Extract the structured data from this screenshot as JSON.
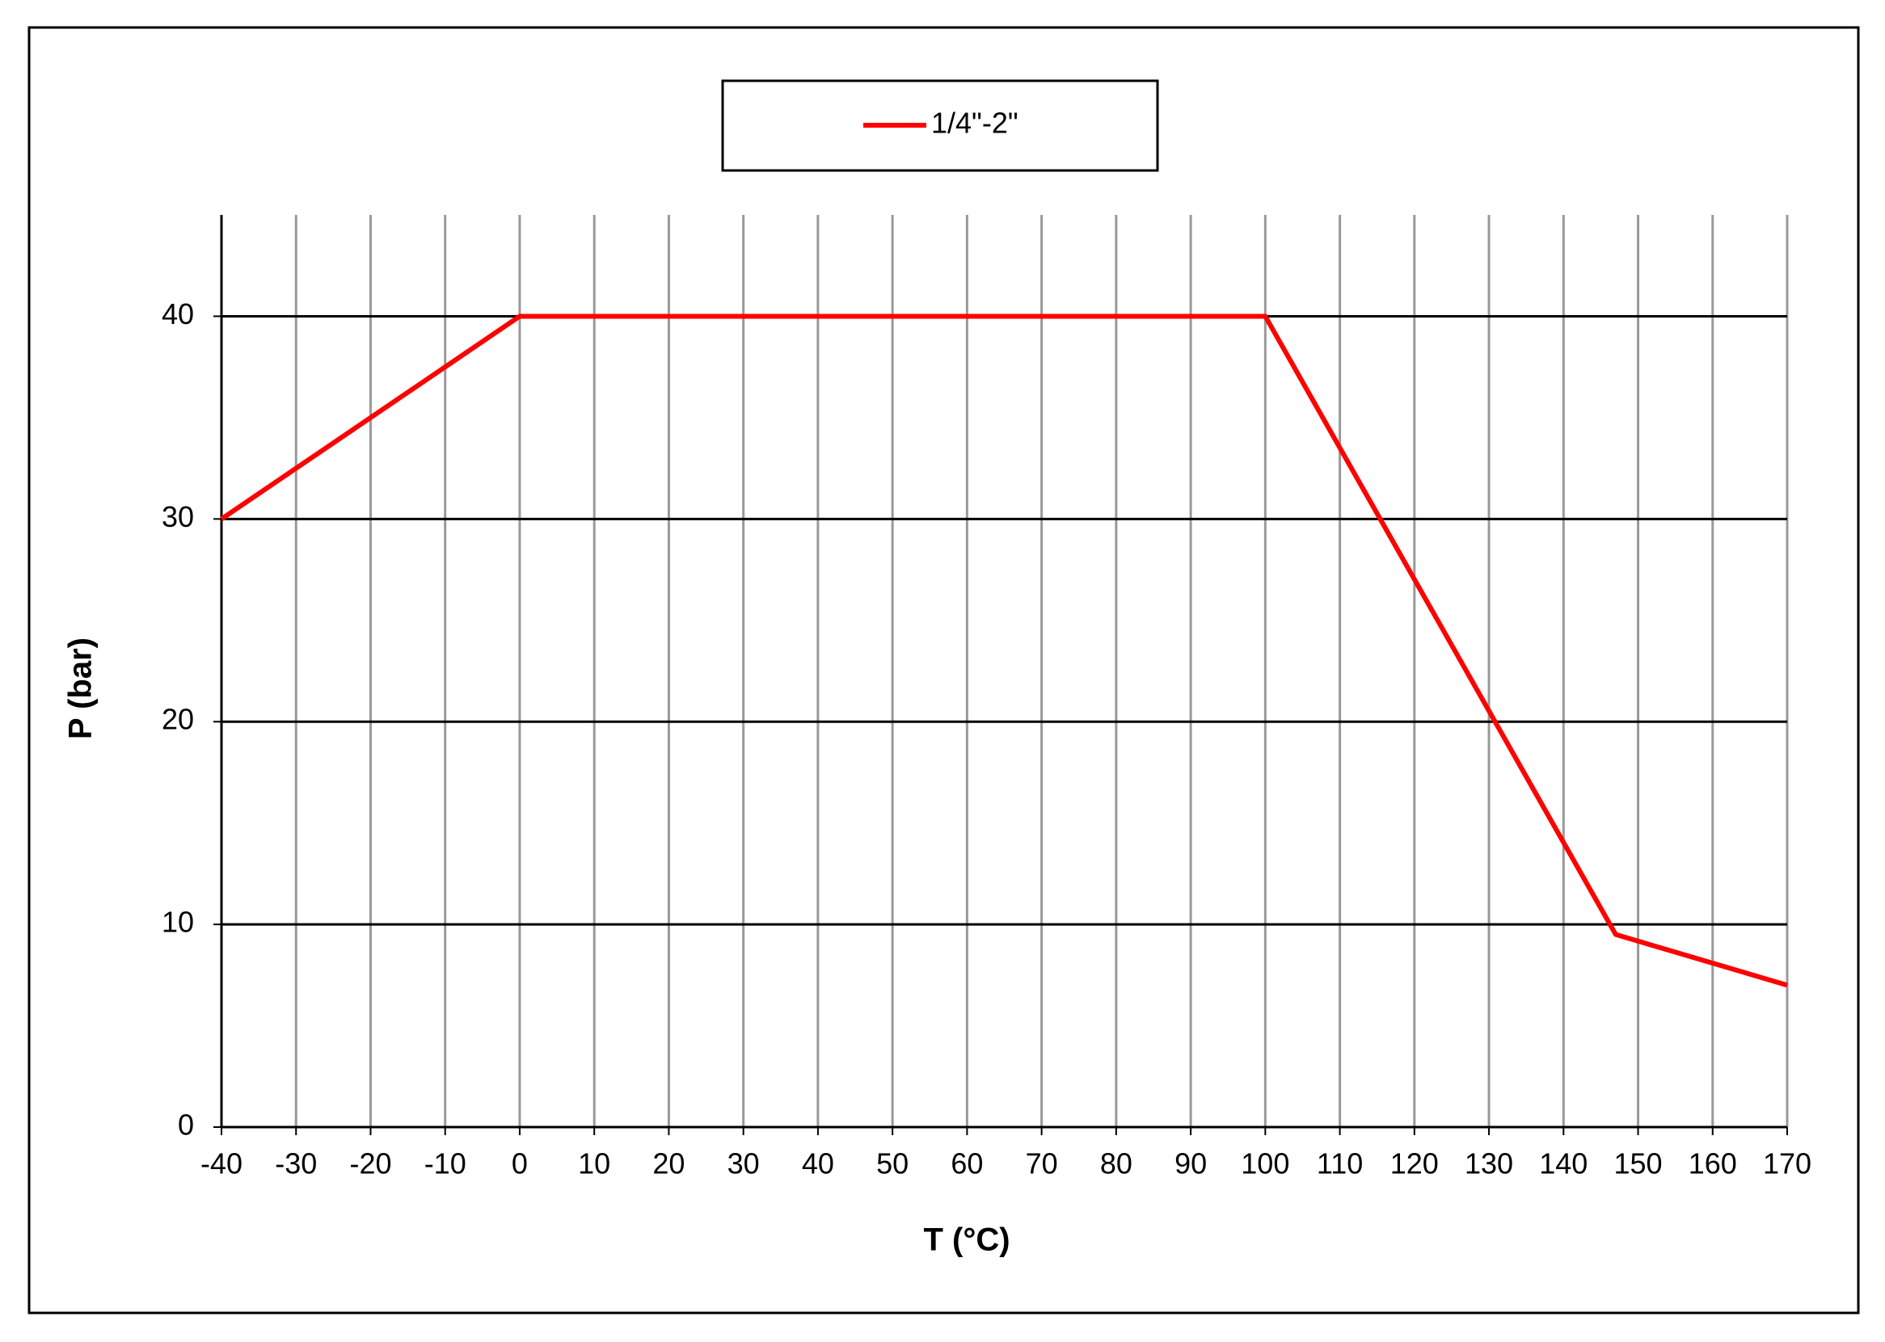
{
  "chart_data": {
    "type": "line",
    "x_label": "T (°C)",
    "y_label": "P (bar)",
    "x": [
      -40,
      0,
      100,
      147,
      170
    ],
    "series": [
      {
        "name": "1/4\"-2\"",
        "color": "#ff0000",
        "values": [
          30,
          40,
          40,
          9.5,
          7
        ]
      }
    ],
    "xlim": [
      -40,
      170
    ],
    "xticks": [
      -40,
      -30,
      -20,
      -10,
      0,
      10,
      20,
      30,
      40,
      50,
      60,
      70,
      80,
      90,
      100,
      110,
      120,
      130,
      140,
      150,
      160,
      170
    ],
    "ylim": [
      0,
      45
    ],
    "yticks": [
      0,
      10,
      20,
      30,
      40
    ],
    "grid": true,
    "legend": "top"
  }
}
